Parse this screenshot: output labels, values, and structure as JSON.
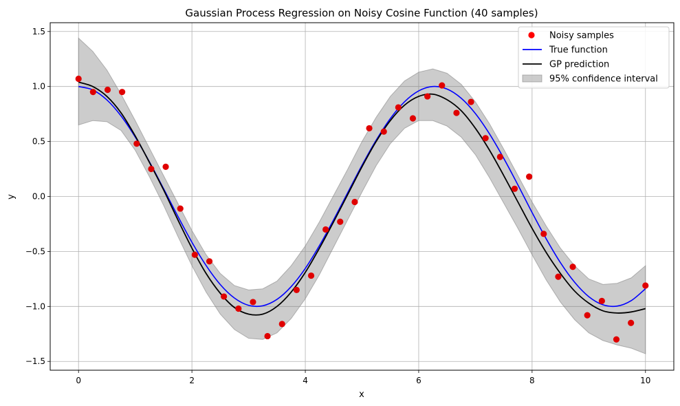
{
  "chart_data": {
    "type": "scatter",
    "title": "Gaussian Process Regression on Noisy Cosine Function (40 samples)",
    "xlabel": "x",
    "ylabel": "y",
    "xlim": [
      -0.5,
      10.5
    ],
    "ylim": [
      -1.58,
      1.58
    ],
    "xticks": [
      0,
      2,
      4,
      6,
      8,
      10
    ],
    "yticks": [
      -1.5,
      -1.0,
      -0.5,
      0.0,
      0.5,
      1.0,
      1.5
    ],
    "xtick_labels": [
      "0",
      "2",
      "4",
      "6",
      "8",
      "10"
    ],
    "ytick_labels": [
      "−1.5",
      "−1.0",
      "−0.5",
      "0.0",
      "0.5",
      "1.0",
      "1.5"
    ],
    "grid": true,
    "legend_position": "upper-right",
    "legend": [
      {
        "label": "Noisy samples",
        "kind": "marker",
        "color": "#ff0000"
      },
      {
        "label": "True function",
        "kind": "line",
        "color": "#0000ff"
      },
      {
        "label": "GP prediction",
        "kind": "line",
        "color": "#000000"
      },
      {
        "label": "95% confidence interval",
        "kind": "patch",
        "color": "#808080"
      }
    ],
    "samples": {
      "name": "Noisy samples",
      "color": "#ff0000",
      "x": [
        0.0,
        0.256,
        0.513,
        0.769,
        1.026,
        1.282,
        1.538,
        1.795,
        2.051,
        2.308,
        2.564,
        2.821,
        3.077,
        3.333,
        3.59,
        3.846,
        4.103,
        4.359,
        4.615,
        4.872,
        5.128,
        5.385,
        5.641,
        5.897,
        6.154,
        6.41,
        6.667,
        6.923,
        7.179,
        7.436,
        7.692,
        7.949,
        8.205,
        8.462,
        8.718,
        8.974,
        9.231,
        9.487,
        9.744,
        10.0
      ],
      "y": [
        1.07,
        0.95,
        0.97,
        0.95,
        0.48,
        0.25,
        0.27,
        -0.11,
        -0.53,
        -0.59,
        -0.91,
        -1.02,
        -0.96,
        -1.27,
        -1.16,
        -0.85,
        -0.72,
        -0.3,
        -0.23,
        -0.05,
        0.62,
        0.59,
        0.81,
        0.71,
        0.91,
        1.01,
        0.76,
        0.86,
        0.53,
        0.36,
        0.07,
        0.18,
        -0.34,
        -0.73,
        -0.64,
        -1.08,
        -0.95,
        -1.3,
        -1.15,
        -0.81
      ]
    },
    "true_function": {
      "name": "True function",
      "color": "#0000ff",
      "x": [
        0,
        0.25,
        0.5,
        0.75,
        1.0,
        1.25,
        1.5,
        1.75,
        2.0,
        2.25,
        2.5,
        2.75,
        3.0,
        3.25,
        3.5,
        3.75,
        4.0,
        4.25,
        4.5,
        4.75,
        5.0,
        5.25,
        5.5,
        5.75,
        6.0,
        6.25,
        6.5,
        6.75,
        7.0,
        7.25,
        7.5,
        7.75,
        8.0,
        8.25,
        8.5,
        8.75,
        9.0,
        9.25,
        9.5,
        9.75,
        10.0
      ],
      "y": [
        1.0,
        0.969,
        0.878,
        0.732,
        0.54,
        0.315,
        0.071,
        -0.178,
        -0.416,
        -0.628,
        -0.801,
        -0.924,
        -0.99,
        -0.994,
        -0.936,
        -0.82,
        -0.654,
        -0.446,
        -0.211,
        0.037,
        0.284,
        0.512,
        0.709,
        0.861,
        0.96,
        1.0,
        0.977,
        0.893,
        0.754,
        0.568,
        0.347,
        0.105,
        -0.146,
        -0.386,
        -0.602,
        -0.78,
        -0.911,
        -0.985,
        -0.997,
        -0.947,
        -0.839
      ]
    },
    "gp_prediction": {
      "name": "GP prediction",
      "color": "#000000",
      "x": [
        0,
        0.25,
        0.5,
        0.75,
        1.0,
        1.25,
        1.5,
        1.75,
        2.0,
        2.25,
        2.5,
        2.75,
        3.0,
        3.25,
        3.5,
        3.75,
        4.0,
        4.25,
        4.5,
        4.75,
        5.0,
        5.25,
        5.5,
        5.75,
        6.0,
        6.25,
        6.5,
        6.75,
        7.0,
        7.25,
        7.5,
        7.75,
        8.0,
        8.25,
        8.5,
        8.75,
        9.0,
        9.25,
        9.5,
        9.75,
        10.0
      ],
      "y": [
        1.04,
        1.0,
        0.91,
        0.76,
        0.55,
        0.31,
        0.06,
        -0.21,
        -0.47,
        -0.7,
        -0.88,
        -1.01,
        -1.07,
        -1.07,
        -1.0,
        -0.87,
        -0.69,
        -0.47,
        -0.23,
        0.02,
        0.27,
        0.5,
        0.69,
        0.83,
        0.91,
        0.93,
        0.88,
        0.78,
        0.62,
        0.42,
        0.19,
        -0.05,
        -0.29,
        -0.51,
        -0.7,
        -0.86,
        -0.97,
        -1.04,
        -1.06,
        -1.05,
        -1.02
      ]
    },
    "confidence_interval": {
      "name": "95% confidence interval",
      "color": "#808080",
      "x": [
        0,
        0.25,
        0.5,
        0.75,
        1.0,
        1.25,
        1.5,
        1.75,
        2.0,
        2.25,
        2.5,
        2.75,
        3.0,
        3.25,
        3.5,
        3.75,
        4.0,
        4.25,
        4.5,
        4.75,
        5.0,
        5.25,
        5.5,
        5.75,
        6.0,
        6.25,
        6.5,
        6.75,
        7.0,
        7.25,
        7.5,
        7.75,
        8.0,
        8.25,
        8.5,
        8.75,
        9.0,
        9.25,
        9.5,
        9.75,
        10.0
      ],
      "lower": [
        0.65,
        0.69,
        0.68,
        0.6,
        0.42,
        0.18,
        -0.08,
        -0.36,
        -0.63,
        -0.87,
        -1.07,
        -1.21,
        -1.29,
        -1.3,
        -1.24,
        -1.11,
        -0.93,
        -0.71,
        -0.46,
        -0.21,
        0.04,
        0.28,
        0.48,
        0.62,
        0.69,
        0.69,
        0.64,
        0.54,
        0.38,
        0.17,
        -0.06,
        -0.29,
        -0.53,
        -0.76,
        -0.96,
        -1.12,
        -1.24,
        -1.31,
        -1.35,
        -1.38,
        -1.43
      ],
      "upper": [
        1.44,
        1.32,
        1.15,
        0.93,
        0.69,
        0.44,
        0.19,
        -0.06,
        -0.31,
        -0.53,
        -0.7,
        -0.81,
        -0.85,
        -0.84,
        -0.77,
        -0.63,
        -0.45,
        -0.23,
        0.01,
        0.25,
        0.5,
        0.72,
        0.91,
        1.05,
        1.13,
        1.16,
        1.12,
        1.02,
        0.86,
        0.66,
        0.43,
        0.19,
        -0.05,
        -0.27,
        -0.47,
        -0.63,
        -0.75,
        -0.8,
        -0.79,
        -0.74,
        -0.63
      ]
    }
  }
}
